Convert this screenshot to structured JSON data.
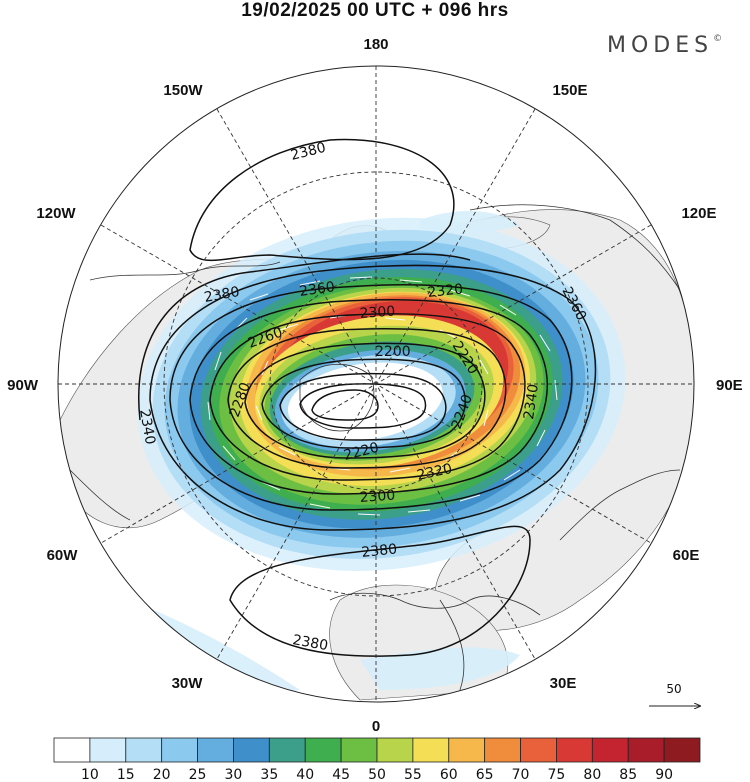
{
  "header": {
    "title": "19/02/2025  00 UTC  + 096 hrs",
    "brand": "MODES",
    "brand_mark": "©"
  },
  "map": {
    "projection": "north-polar-stereographic",
    "longitude_labels": [
      {
        "id": "180",
        "text": "180"
      },
      {
        "id": "150E",
        "text": "150E"
      },
      {
        "id": "120E",
        "text": "120E"
      },
      {
        "id": "90E",
        "text": "90E"
      },
      {
        "id": "60E",
        "text": "60E"
      },
      {
        "id": "30E",
        "text": "30E"
      },
      {
        "id": "0",
        "text": "0"
      },
      {
        "id": "30W",
        "text": "30W"
      },
      {
        "id": "60W",
        "text": "60W"
      },
      {
        "id": "90W",
        "text": "90W"
      },
      {
        "id": "120W",
        "text": "120W"
      },
      {
        "id": "150W",
        "text": "150W"
      }
    ],
    "geopotential_contour_labels": [
      "2380",
      "2380",
      "2360",
      "2360",
      "2340",
      "2340",
      "2320",
      "2320",
      "2300",
      "2300",
      "2280",
      "2260",
      "2240",
      "2220",
      "2220",
      "2200",
      "2380",
      "2380"
    ],
    "reference_vector": {
      "label": "50"
    },
    "wind_speed_colors": [
      "#ffffff",
      "#d6eefb",
      "#b4def6",
      "#8cc9ee",
      "#64aedf",
      "#3f8fca",
      "#3c9f8a",
      "#3fae4e",
      "#6dbf43",
      "#b7d44a",
      "#f4de55",
      "#f6b84a",
      "#f08d3c",
      "#e8613a",
      "#d93935",
      "#c42430",
      "#a91d2a",
      "#8e1b20"
    ]
  },
  "colorbar": {
    "ticks": [
      "10",
      "15",
      "20",
      "25",
      "30",
      "35",
      "40",
      "45",
      "50",
      "55",
      "60",
      "65",
      "70",
      "75",
      "80",
      "85",
      "90"
    ],
    "colors": [
      "#ffffff",
      "#d6eefb",
      "#b4def6",
      "#8cc9ee",
      "#64aedf",
      "#3f8fca",
      "#3c9f8a",
      "#3fae4e",
      "#6dbf43",
      "#b7d44a",
      "#f4de55",
      "#f6b84a",
      "#f08d3c",
      "#e8613a",
      "#d93935",
      "#c42430",
      "#a91d2a",
      "#8e1b20"
    ]
  }
}
